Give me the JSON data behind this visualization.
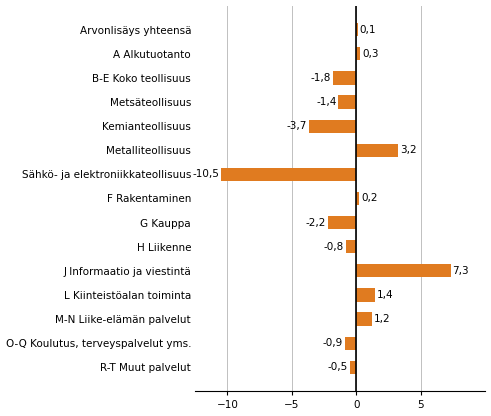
{
  "categories": [
    "R-T Muut palvelut",
    "O-Q Koulutus, terveyspalvelut yms.",
    "M-N Liike-elämän palvelut",
    "L Kiinteistöalan toiminta",
    "J Informaatio ja viestintä",
    "H Liikenne",
    "G Kauppa",
    "F Rakentaminen",
    "Sähkö- ja elektroniikkateollisuus",
    "Metalliteollisuus",
    "Kemianteollisuus",
    "Metsäteollisuus",
    "B-E Koko teollisuus",
    "A Alkutuotanto",
    "Arvonlisäys yhteensä"
  ],
  "values": [
    -0.5,
    -0.9,
    1.2,
    1.4,
    7.3,
    -0.8,
    -2.2,
    0.2,
    -10.5,
    3.2,
    -3.7,
    -1.4,
    -1.8,
    0.3,
    0.1
  ],
  "bar_color": "#E07B20",
  "xlim": [
    -12.5,
    10
  ],
  "xticks": [
    -10,
    -5,
    0,
    5
  ],
  "label_fontsize": 7.5,
  "value_fontsize": 7.5,
  "background_color": "#ffffff",
  "grid_color": "#c0c0c0"
}
